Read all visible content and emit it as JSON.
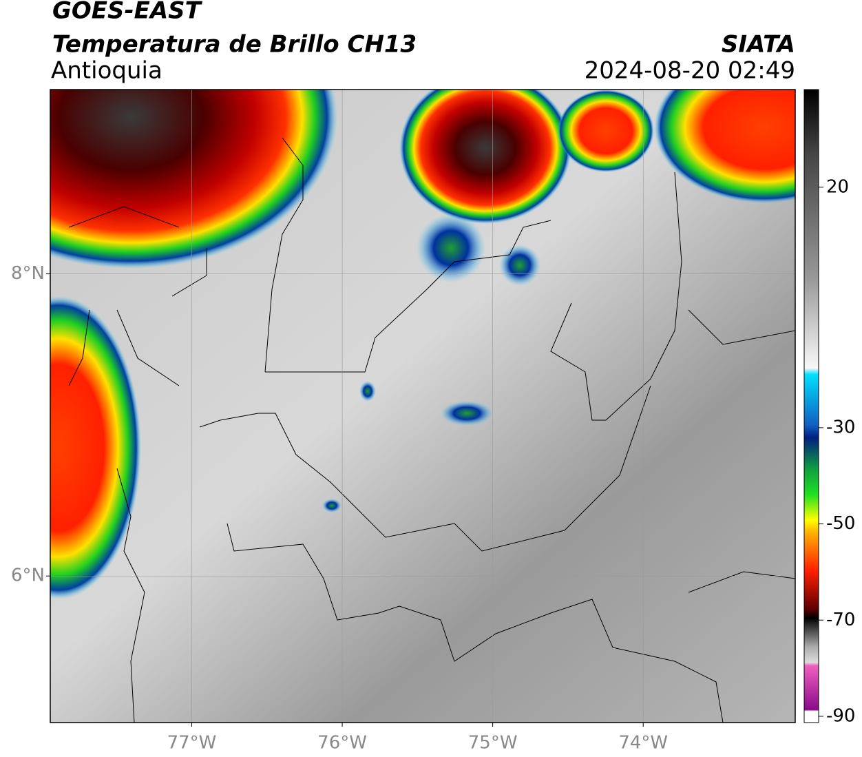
{
  "header": {
    "title": "GOES-EAST",
    "subtitle": "Temperatura de Brillo CH13",
    "region": "Antioquia",
    "source": "SIATA",
    "datetime": "2024-08-20 02:49"
  },
  "map": {
    "xlim": [
      -77.94,
      -72.99
    ],
    "ylim": [
      5.03,
      9.22
    ],
    "xticks": [
      {
        "value": -77,
        "label": "77°W"
      },
      {
        "value": -76,
        "label": "76°W"
      },
      {
        "value": -75,
        "label": "75°W"
      },
      {
        "value": -74,
        "label": "74°W"
      }
    ],
    "yticks": [
      {
        "value": 8,
        "label": "8°N"
      },
      {
        "value": 6,
        "label": "6°N"
      }
    ],
    "grid": true
  },
  "colorbar": {
    "lim": [
      -91.3,
      40.3
    ],
    "ticks": [
      20,
      -30,
      -50,
      -70,
      -90
    ]
  }
}
